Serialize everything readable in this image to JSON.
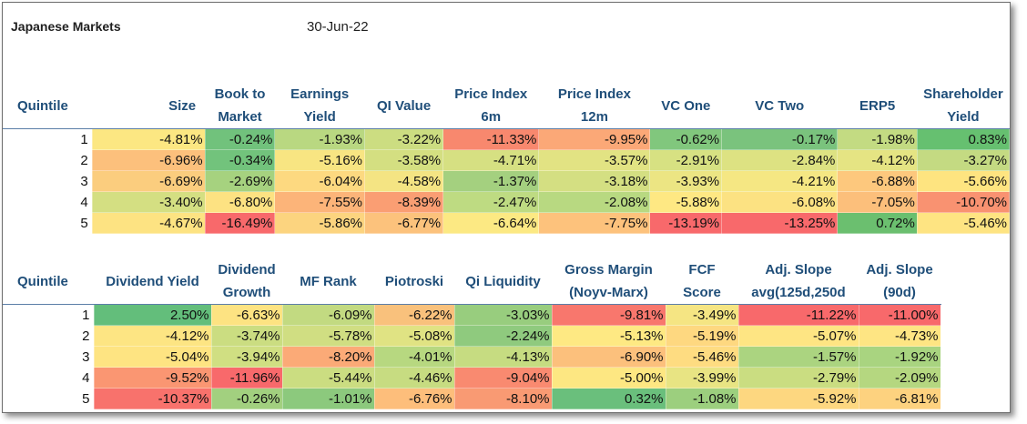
{
  "title": "Japanese Markets",
  "date": "30-Jun-22",
  "table1": {
    "headers": [
      [
        "Quintile"
      ],
      [
        "Size"
      ],
      [
        "Book to",
        "Market"
      ],
      [
        "Earnings",
        "Yield"
      ],
      [
        "QI Value"
      ],
      [
        "Price Index",
        "6m"
      ],
      [
        "Price Index",
        "12m"
      ],
      [
        "VC One"
      ],
      [
        "VC Two"
      ],
      [
        "ERP5"
      ],
      [
        "Shareholder",
        "Yield"
      ]
    ],
    "rows": [
      {
        "q": "1",
        "cells": [
          {
            "v": "-4.81%",
            "c": "#fce782"
          },
          {
            "v": "-0.24%",
            "c": "#71c27c"
          },
          {
            "v": "-1.93%",
            "c": "#b9d881"
          },
          {
            "v": "-3.22%",
            "c": "#ccdd81"
          },
          {
            "v": "-11.33%",
            "c": "#f8886e"
          },
          {
            "v": "-9.95%",
            "c": "#fba877"
          },
          {
            "v": "-0.62%",
            "c": "#81c77d"
          },
          {
            "v": "-0.17%",
            "c": "#7ac37d"
          },
          {
            "v": "-1.98%",
            "c": "#c3db82"
          },
          {
            "v": "0.83%",
            "c": "#66c070"
          }
        ]
      },
      {
        "q": "2",
        "cells": [
          {
            "v": "-6.96%",
            "c": "#fcc07c"
          },
          {
            "v": "-0.34%",
            "c": "#72c37c"
          },
          {
            "v": "-5.16%",
            "c": "#f8e582"
          },
          {
            "v": "-3.58%",
            "c": "#d4df81"
          },
          {
            "v": "-4.71%",
            "c": "#d6e082"
          },
          {
            "v": "-3.57%",
            "c": "#e2e383"
          },
          {
            "v": "-2.91%",
            "c": "#d7e182"
          },
          {
            "v": "-2.84%",
            "c": "#dde282"
          },
          {
            "v": "-4.12%",
            "c": "#e5e483"
          },
          {
            "v": "-3.27%",
            "c": "#c4da82"
          }
        ]
      },
      {
        "q": "3",
        "cells": [
          {
            "v": "-6.69%",
            "c": "#fbcd7e"
          },
          {
            "v": "-2.69%",
            "c": "#a6d27f"
          },
          {
            "v": "-6.04%",
            "c": "#fdd980"
          },
          {
            "v": "-4.58%",
            "c": "#f4e483"
          },
          {
            "v": "-1.37%",
            "c": "#a4d07f"
          },
          {
            "v": "-3.18%",
            "c": "#d4df82"
          },
          {
            "v": "-3.93%",
            "c": "#ece583"
          },
          {
            "v": "-4.21%",
            "c": "#f5e783"
          },
          {
            "v": "-6.88%",
            "c": "#fdc87d"
          },
          {
            "v": "-5.66%",
            "c": "#fee480"
          }
        ]
      },
      {
        "q": "4",
        "cells": [
          {
            "v": "-3.40%",
            "c": "#d4df82"
          },
          {
            "v": "-6.80%",
            "c": "#fde282"
          },
          {
            "v": "-7.55%",
            "c": "#fcb479"
          },
          {
            "v": "-8.39%",
            "c": "#fa9e73"
          },
          {
            "v": "-2.47%",
            "c": "#bedb82"
          },
          {
            "v": "-2.08%",
            "c": "#b8d981"
          },
          {
            "v": "-5.88%",
            "c": "#fee883"
          },
          {
            "v": "-6.08%",
            "c": "#fce282"
          },
          {
            "v": "-7.05%",
            "c": "#fcbf7b"
          },
          {
            "v": "-10.70%",
            "c": "#f99271"
          }
        ]
      },
      {
        "q": "5",
        "cells": [
          {
            "v": "-4.67%",
            "c": "#fde382"
          },
          {
            "v": "-16.49%",
            "c": "#f8696b"
          },
          {
            "v": "-5.86%",
            "c": "#fcd47f"
          },
          {
            "v": "-6.77%",
            "c": "#fcc27c"
          },
          {
            "v": "-6.64%",
            "c": "#fce983"
          },
          {
            "v": "-7.75%",
            "c": "#fdc27c"
          },
          {
            "v": "-13.19%",
            "c": "#f8696b"
          },
          {
            "v": "-13.25%",
            "c": "#f8696b"
          },
          {
            "v": "0.72%",
            "c": "#6bbf6f"
          },
          {
            "v": "-5.46%",
            "c": "#fee482"
          }
        ]
      }
    ]
  },
  "table2": {
    "headers": [
      [
        "Quintile"
      ],
      [
        "Dividend Yield"
      ],
      [
        "Dividend",
        "Growth"
      ],
      [
        "MF Rank"
      ],
      [
        "Piotroski"
      ],
      [
        "Qi Liquidity"
      ],
      [
        "Gross Margin",
        "(Noyv-Marx)"
      ],
      [
        "FCF",
        "Score"
      ],
      [
        "Adj. Slope",
        "avg(125d,250d"
      ],
      [
        "Adj. Slope",
        "(90d)"
      ]
    ],
    "rows": [
      {
        "q": "1",
        "cells": [
          {
            "v": "2.50%",
            "c": "#63be7b"
          },
          {
            "v": "-6.63%",
            "c": "#fde382"
          },
          {
            "v": "-6.09%",
            "c": "#c2da81"
          },
          {
            "v": "-6.22%",
            "c": "#f9c17c"
          },
          {
            "v": "-3.03%",
            "c": "#98cd7e"
          },
          {
            "v": "-9.81%",
            "c": "#f8776d"
          },
          {
            "v": "-3.49%",
            "c": "#f5e583"
          },
          {
            "v": "-11.22%",
            "c": "#f8696b"
          },
          {
            "v": "-11.00%",
            "c": "#f8696b"
          }
        ]
      },
      {
        "q": "2",
        "cells": [
          {
            "v": "-4.12%",
            "c": "#fde583"
          },
          {
            "v": "-3.74%",
            "c": "#cbdd81"
          },
          {
            "v": "-5.78%",
            "c": "#d0de82"
          },
          {
            "v": "-5.08%",
            "c": "#e0e383"
          },
          {
            "v": "-2.24%",
            "c": "#8fca7e"
          },
          {
            "v": "-5.13%",
            "c": "#fee983"
          },
          {
            "v": "-5.19%",
            "c": "#fed880"
          },
          {
            "v": "-5.07%",
            "c": "#fee583"
          },
          {
            "v": "-4.73%",
            "c": "#fee583"
          }
        ]
      },
      {
        "q": "3",
        "cells": [
          {
            "v": "-5.04%",
            "c": "#fee482"
          },
          {
            "v": "-3.94%",
            "c": "#d0df82"
          },
          {
            "v": "-8.20%",
            "c": "#fbaa77"
          },
          {
            "v": "-4.01%",
            "c": "#b7d880"
          },
          {
            "v": "-4.13%",
            "c": "#c6dc81"
          },
          {
            "v": "-6.90%",
            "c": "#fcc07c"
          },
          {
            "v": "-5.46%",
            "c": "#fedc81"
          },
          {
            "v": "-1.57%",
            "c": "#abd480"
          },
          {
            "v": "-1.92%",
            "c": "#a9d480"
          }
        ]
      },
      {
        "q": "4",
        "cells": [
          {
            "v": "-9.52%",
            "c": "#fa9672"
          },
          {
            "v": "-11.96%",
            "c": "#f8696b"
          },
          {
            "v": "-5.44%",
            "c": "#cbdd81"
          },
          {
            "v": "-4.46%",
            "c": "#c7dc81"
          },
          {
            "v": "-9.04%",
            "c": "#f98a70"
          },
          {
            "v": "-5.00%",
            "c": "#fde782"
          },
          {
            "v": "-3.99%",
            "c": "#e8e483"
          },
          {
            "v": "-2.79%",
            "c": "#cadd81"
          },
          {
            "v": "-2.09%",
            "c": "#b5d780"
          }
        ]
      },
      {
        "q": "5",
        "cells": [
          {
            "v": "-10.37%",
            "c": "#f8726c"
          },
          {
            "v": "-0.26%",
            "c": "#a2d07f"
          },
          {
            "v": "-1.01%",
            "c": "#8cc97d"
          },
          {
            "v": "-6.76%",
            "c": "#fdbe7b"
          },
          {
            "v": "-8.10%",
            "c": "#f99a73"
          },
          {
            "v": "0.32%",
            "c": "#6abf7c"
          },
          {
            "v": "-1.08%",
            "c": "#9ccf7e"
          },
          {
            "v": "-5.92%",
            "c": "#fdd780"
          },
          {
            "v": "-6.81%",
            "c": "#fdd27f"
          }
        ]
      }
    ]
  }
}
